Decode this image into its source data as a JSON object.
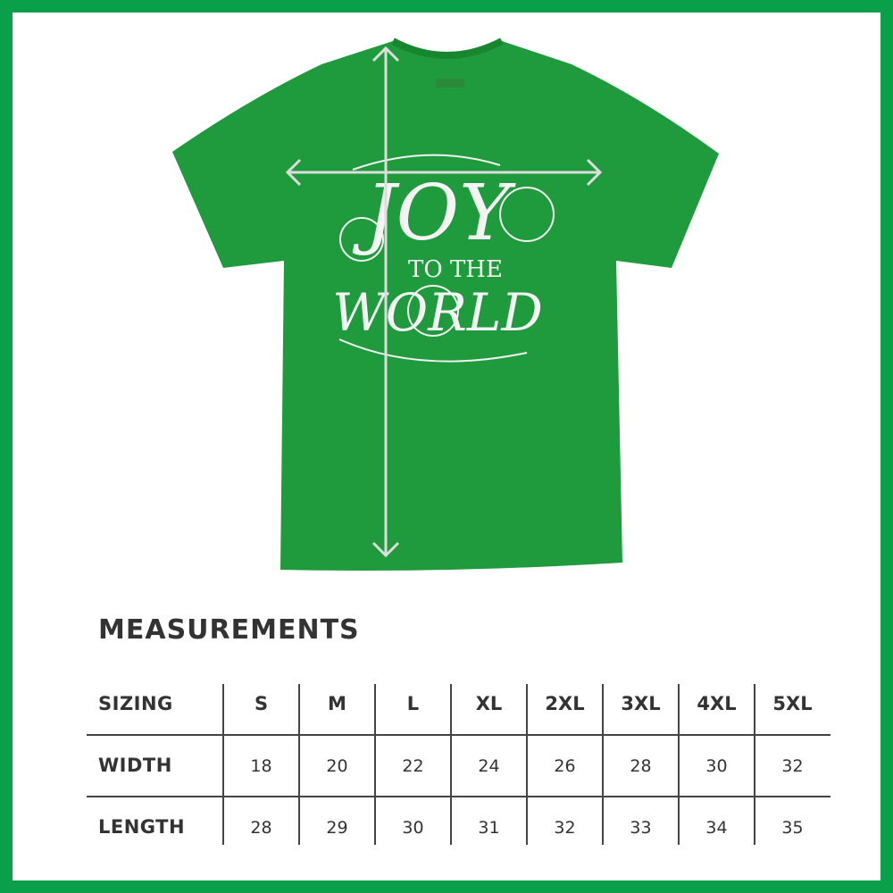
{
  "colors": {
    "border": "#0aa04a",
    "shirt": "#1f9b3e",
    "text": "#333333",
    "arrows": "#dddddd"
  },
  "design": {
    "line1": "JOY",
    "line2": "TO THE",
    "line3": "WORLD"
  },
  "title": "MEASUREMENTS",
  "table": {
    "header": {
      "label": "SIZING",
      "values": [
        "S",
        "M",
        "L",
        "XL",
        "2XL",
        "3XL",
        "4XL",
        "5XL"
      ]
    },
    "rows": [
      {
        "label": "WIDTH",
        "values": [
          "18",
          "20",
          "22",
          "24",
          "26",
          "28",
          "30",
          "32"
        ]
      },
      {
        "label": "LENGTH",
        "values": [
          "28",
          "29",
          "30",
          "31",
          "32",
          "33",
          "34",
          "35"
        ]
      }
    ]
  }
}
